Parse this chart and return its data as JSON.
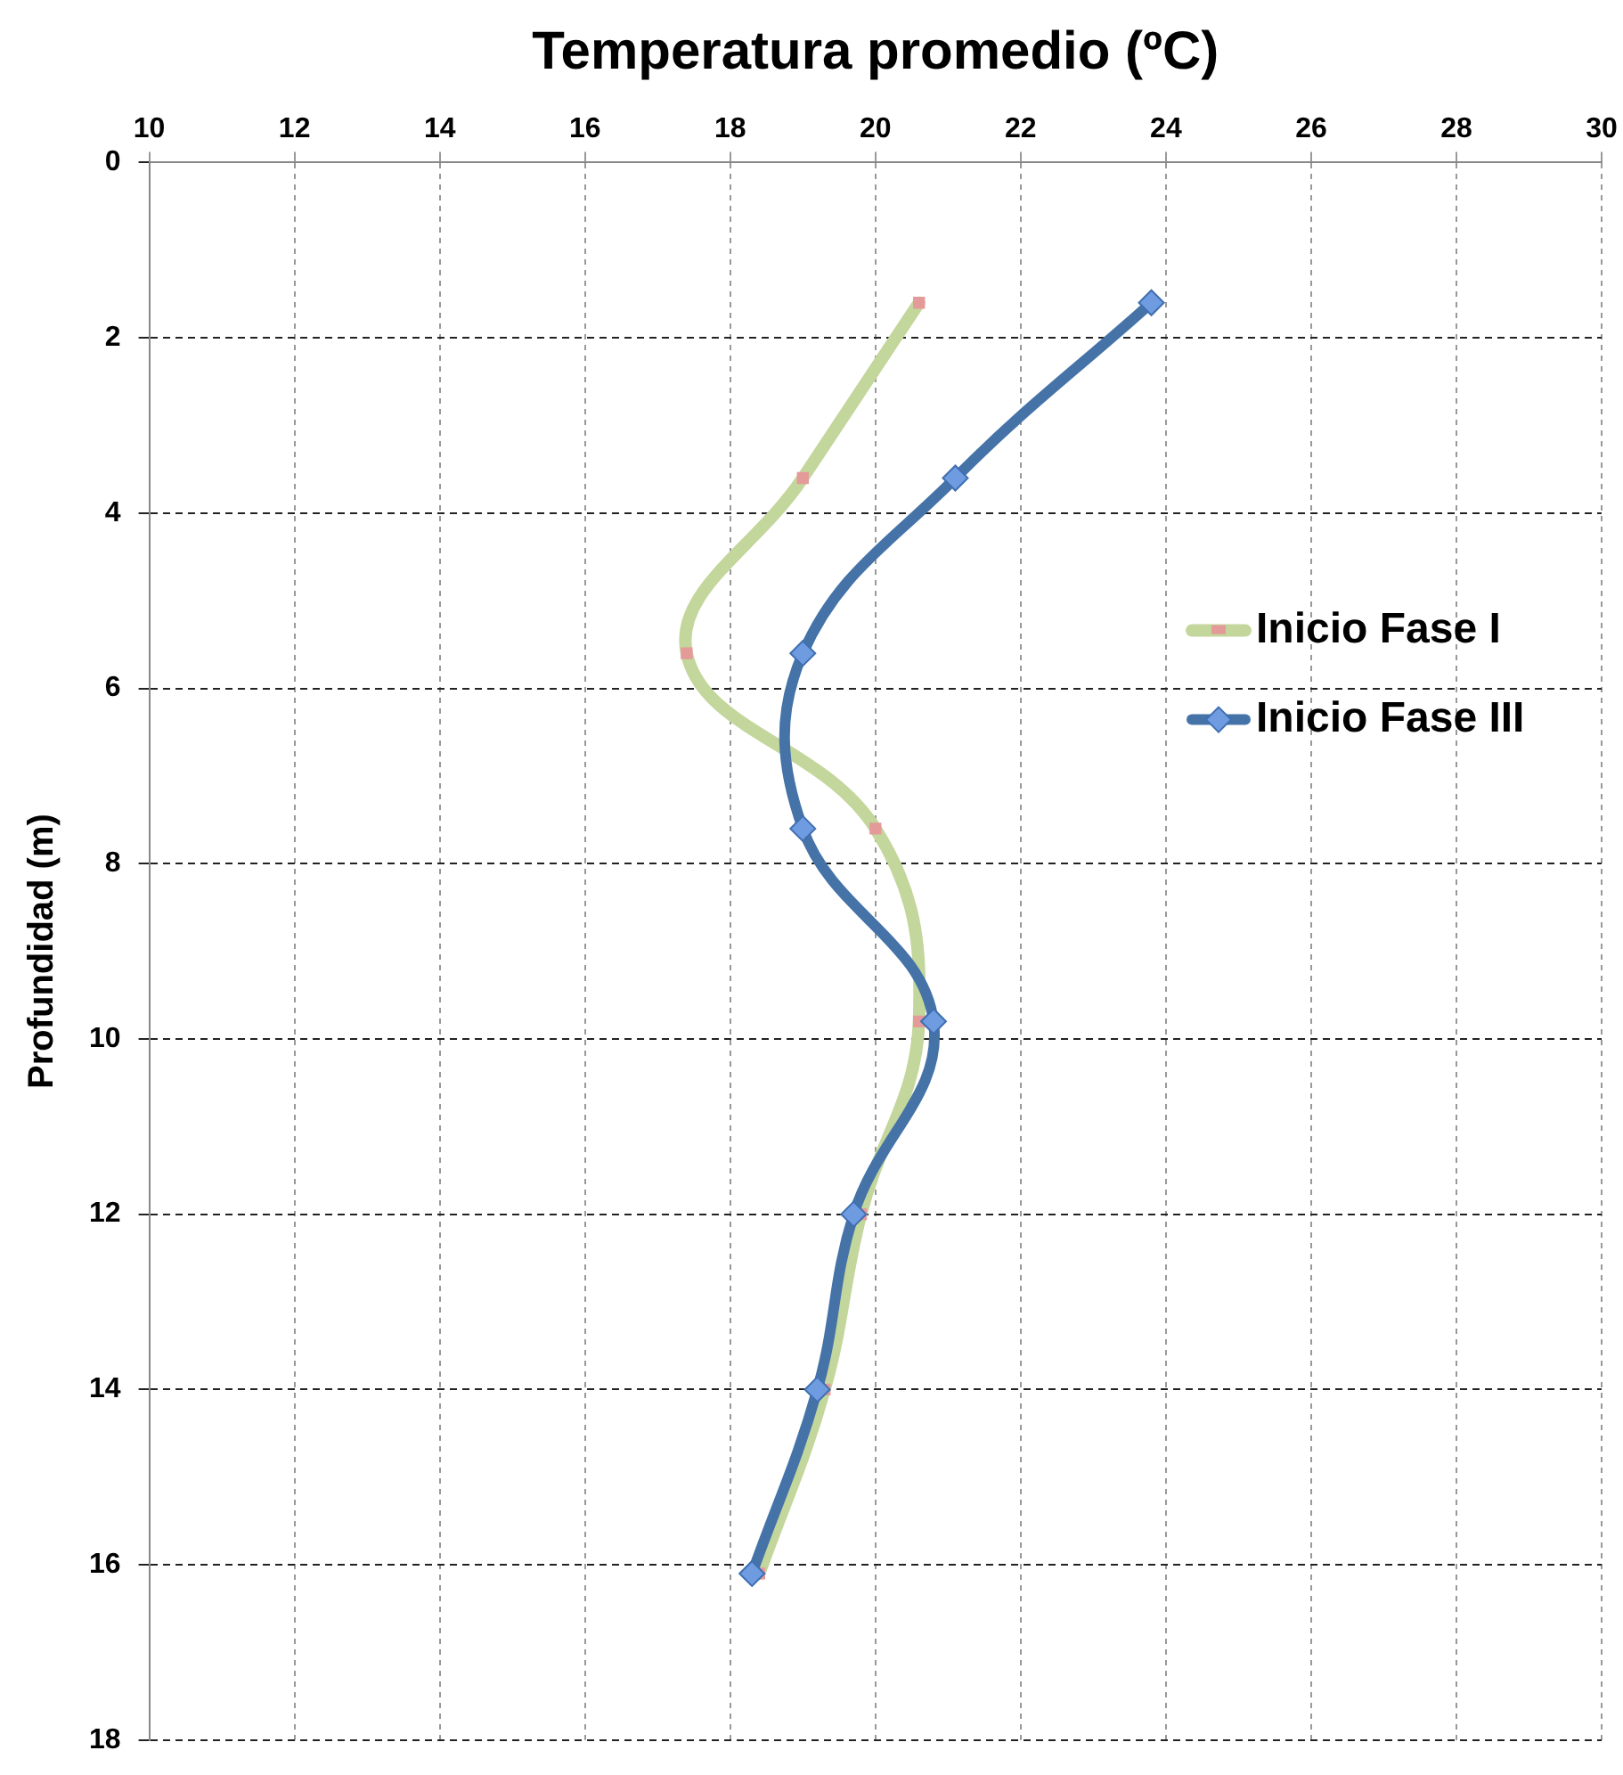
{
  "chart_data": {
    "type": "line",
    "xlabel": "Temperatura promedio (ºC)",
    "ylabel": "Profundidad (m)",
    "xlim": [
      10,
      30
    ],
    "xticks": [
      10,
      12,
      14,
      16,
      18,
      20,
      22,
      24,
      26,
      28,
      30
    ],
    "ylim": [
      18,
      0
    ],
    "yticks": [
      0,
      2,
      4,
      6,
      8,
      10,
      12,
      14,
      16,
      18
    ],
    "grid": true,
    "legend": "right",
    "line_style": "solid",
    "series": [
      {
        "name": "Inicio Fase I",
        "color": "#c3d69b",
        "marker": "square",
        "x": [
          20.6,
          19.0,
          17.4,
          20.0,
          20.6,
          19.8,
          19.3,
          18.4
        ],
        "values": [
          1.6,
          3.6,
          5.6,
          7.6,
          9.8,
          12.0,
          14.0,
          16.1
        ]
      },
      {
        "name": "Inicio Fase III",
        "color": "#4573a8",
        "marker": "diamond",
        "x": [
          23.8,
          21.1,
          19.0,
          19.0,
          20.8,
          19.7,
          19.2,
          18.3
        ],
        "values": [
          1.6,
          3.6,
          5.6,
          7.6,
          9.8,
          12.0,
          14.0,
          16.1
        ]
      }
    ]
  }
}
